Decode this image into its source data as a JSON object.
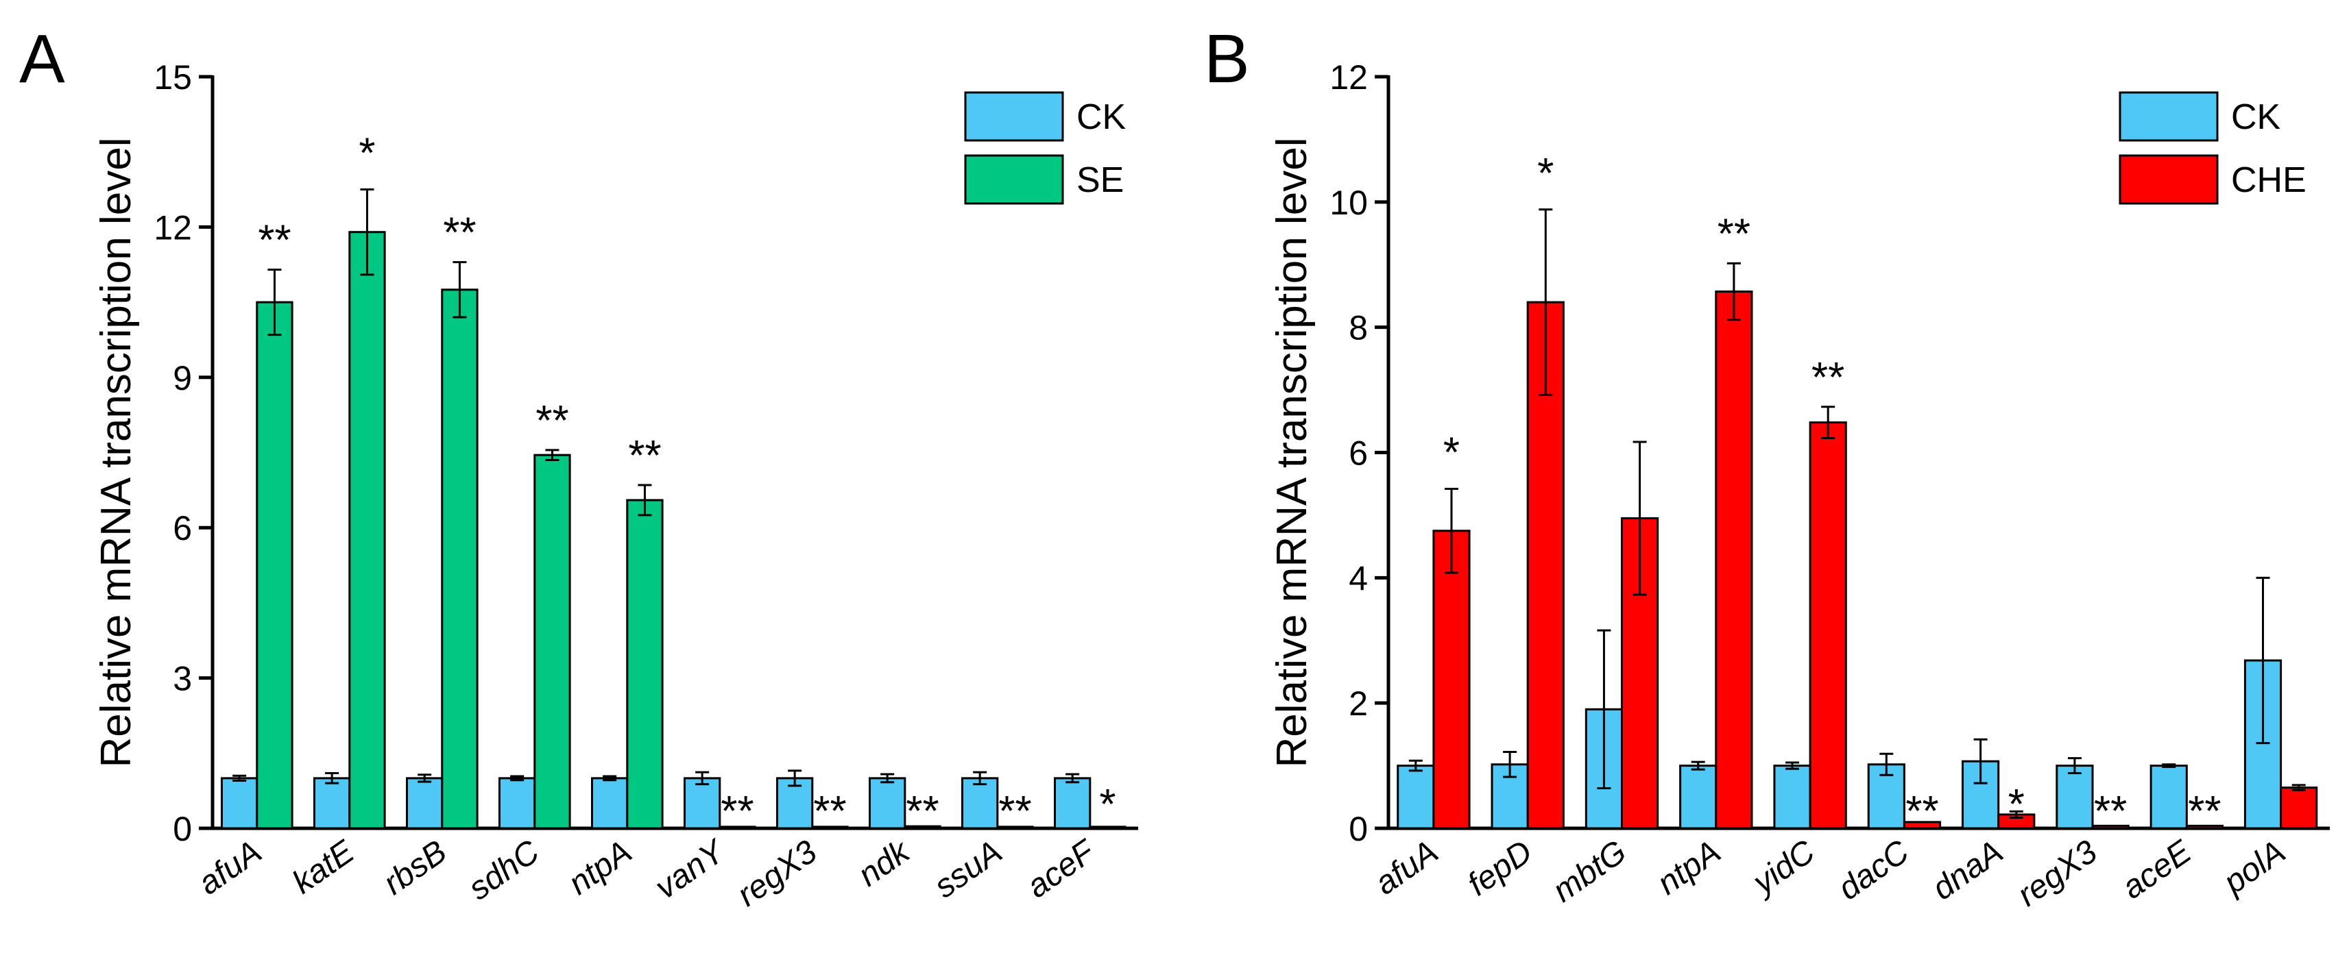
{
  "chart_data": [
    {
      "panel": "A",
      "type": "bar",
      "ylabel": "Relative mRNA transcription level",
      "xlabel": "",
      "ylim": [
        0,
        15
      ],
      "yticks": [
        0,
        3,
        6,
        9,
        12,
        15
      ],
      "categories": [
        "afuA",
        "katE",
        "rbsB",
        "sdhC",
        "ntpA",
        "vanY",
        "regX3",
        "ndk",
        "ssuA",
        "aceF"
      ],
      "series": [
        {
          "name": "CK",
          "color": "#4FC8F5",
          "values": [
            1.0,
            1.0,
            1.0,
            1.0,
            1.0,
            1.0,
            1.0,
            1.0,
            1.0,
            1.0
          ],
          "errors": [
            0.05,
            0.1,
            0.07,
            0.04,
            0.04,
            0.12,
            0.15,
            0.08,
            0.12,
            0.08
          ]
        },
        {
          "name": "SE",
          "color": "#00C882",
          "values": [
            10.5,
            11.9,
            10.75,
            7.45,
            6.55,
            0.03,
            0.03,
            0.04,
            0.03,
            0.03
          ],
          "errors": [
            0.65,
            0.85,
            0.55,
            0.1,
            0.3,
            0.0,
            0.0,
            0.0,
            0.0,
            0.0
          ]
        }
      ],
      "significance": [
        "**",
        "*",
        "**",
        "**",
        "**",
        "**",
        "**",
        "**",
        "**",
        "*"
      ],
      "legend": "top-right",
      "grid": false
    },
    {
      "panel": "B",
      "type": "bar",
      "ylabel": "Relative mRNA transcription level",
      "xlabel": "",
      "ylim": [
        0,
        12
      ],
      "yticks": [
        0,
        2,
        4,
        6,
        8,
        10,
        12
      ],
      "categories": [
        "afuA",
        "fepD",
        "mbtG",
        "ntpA",
        "yidC",
        "dacC",
        "dnaA",
        "regX3",
        "aceE",
        "polA"
      ],
      "series": [
        {
          "name": "CK",
          "color": "#4FC8F5",
          "values": [
            1.0,
            1.02,
            1.9,
            1.0,
            1.0,
            1.02,
            1.07,
            1.0,
            1.0,
            2.68
          ],
          "errors": [
            0.08,
            0.2,
            1.26,
            0.06,
            0.05,
            0.17,
            0.35,
            0.12,
            0.02,
            1.32
          ]
        },
        {
          "name": "CHE",
          "color": "#FF0000",
          "values": [
            4.75,
            8.4,
            4.95,
            8.57,
            6.48,
            0.1,
            0.22,
            0.04,
            0.04,
            0.65
          ],
          "errors": [
            0.67,
            1.48,
            1.22,
            0.45,
            0.25,
            0.0,
            0.05,
            0.0,
            0.0,
            0.04
          ]
        }
      ],
      "significance": [
        "*",
        "*",
        "",
        "**",
        "**",
        "**",
        "*",
        "**",
        "**",
        ""
      ],
      "legend": "top-right",
      "grid": false
    }
  ]
}
